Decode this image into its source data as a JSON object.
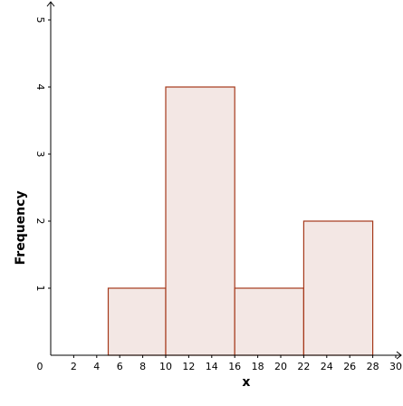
{
  "chart_data": {
    "type": "bar",
    "subtype": "histogram",
    "xlabel": "x",
    "ylabel": "Frequency",
    "xlim": [
      0,
      30
    ],
    "ylim": [
      0,
      5
    ],
    "origin_label": "0",
    "x_ticks": [
      2,
      4,
      6,
      8,
      10,
      12,
      14,
      16,
      18,
      20,
      22,
      24,
      26,
      28,
      30
    ],
    "y_ticks": [
      1,
      2,
      3,
      4,
      5
    ],
    "bins": [
      {
        "start": 1,
        "end": 5,
        "value": 0
      },
      {
        "start": 5,
        "end": 10,
        "value": 1
      },
      {
        "start": 10,
        "end": 16,
        "value": 4
      },
      {
        "start": 16,
        "end": 22,
        "value": 1
      },
      {
        "start": 22,
        "end": 28,
        "value": 2
      }
    ],
    "grid": false,
    "colors": {
      "bar_fill": "#f3e7e4",
      "bar_stroke": "#a5391b",
      "axis": "#000000"
    }
  }
}
